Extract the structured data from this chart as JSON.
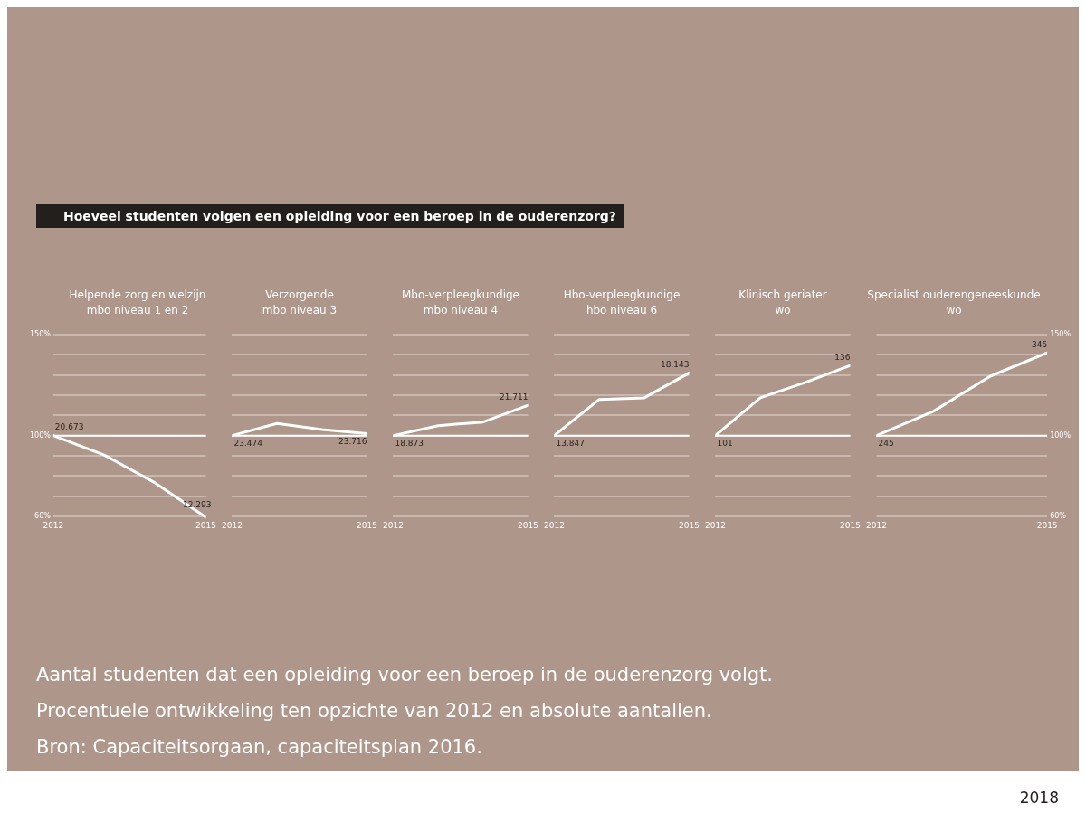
{
  "chart_data": [
    {
      "type": "other",
      "title": "Hoeveel studenten volgen een opleiding voor een beroep in de ouderenzorg?"
    },
    {
      "type": "line",
      "title": "Helpende zorg en welzijn\nmbo niveau 1 en 2",
      "categories": [
        "2012",
        null,
        null,
        "2015"
      ],
      "series": [
        {
          "color": "#ffffff",
          "values": [
            100,
            90.4,
            76.6,
            59.5
          ]
        }
      ],
      "ylim": [
        59,
        150
      ],
      "yticks": [
        {
          "value": 60,
          "label": "60%"
        },
        {
          "value": 70,
          "label": null
        },
        {
          "value": 80,
          "label": null
        },
        {
          "value": 90,
          "label": null
        },
        {
          "value": 100,
          "label": "100%"
        },
        {
          "value": 110,
          "label": null
        },
        {
          "value": 120,
          "label": null
        },
        {
          "value": 130,
          "label": null
        },
        {
          "value": 140,
          "label": null
        },
        {
          "value": 150,
          "label": "150%"
        }
      ],
      "grid": "y",
      "marker": "none",
      "ref_lines": [
        {
          "axis": "y",
          "value": 100,
          "color": "#ffffff"
        }
      ],
      "annotations": [
        {
          "text": "20.673",
          "x": "2012",
          "y": 100
        },
        {
          "text": "12.293",
          "x": "2015",
          "y": 59.5
        }
      ]
    },
    {
      "type": "line",
      "title": "Verzorgende\nmbo niveau 3",
      "categories": [
        "2012",
        null,
        null,
        "2015"
      ],
      "series": [
        {
          "color": "#ffffff",
          "values": [
            100,
            106,
            103,
            101
          ]
        }
      ],
      "ylim": [
        59,
        150
      ],
      "yticks": [
        60,
        70,
        80,
        90,
        100,
        110,
        120,
        130,
        140,
        150
      ],
      "tick_labels": "x",
      "grid": "y",
      "marker": "none",
      "ref_lines": [
        {
          "axis": "y",
          "value": 100,
          "color": "#ffffff"
        }
      ],
      "annotations": [
        {
          "text": "23.474",
          "x": "2012",
          "y": 100
        },
        {
          "text": "23.716",
          "x": "2015",
          "y": 101
        }
      ]
    },
    {
      "type": "line",
      "title": "Mbo-verpleegkundige\nmbo niveau 4",
      "categories": [
        "2012",
        null,
        null,
        "2015"
      ],
      "series": [
        {
          "color": "#ffffff",
          "values": [
            100,
            104.9,
            106.7,
            115
          ]
        }
      ],
      "ylim": [
        59,
        150
      ],
      "yticks": [
        60,
        70,
        80,
        90,
        100,
        110,
        120,
        130,
        140,
        150
      ],
      "tick_labels": "x",
      "grid": "y",
      "marker": "none",
      "ref_lines": [
        {
          "axis": "y",
          "value": 100,
          "color": "#ffffff"
        }
      ],
      "annotations": [
        {
          "text": "18.873",
          "x": "2012",
          "y": 100
        },
        {
          "text": "21.711",
          "x": "2015",
          "y": 115
        }
      ]
    },
    {
      "type": "line",
      "title": "Hbo-verpleegkundige\nhbo niveau 6",
      "categories": [
        "2012",
        null,
        null,
        "2015"
      ],
      "series": [
        {
          "color": "#ffffff",
          "values": [
            100,
            117.9,
            118.7,
            131
          ]
        }
      ],
      "ylim": [
        59,
        150
      ],
      "yticks": [
        60,
        70,
        80,
        90,
        100,
        110,
        120,
        130,
        140,
        150
      ],
      "tick_labels": "x",
      "grid": "y",
      "marker": "none",
      "ref_lines": [
        {
          "axis": "y",
          "value": 100,
          "color": "#ffffff"
        }
      ],
      "annotations": [
        {
          "text": "13.847",
          "x": "2012",
          "y": 100
        },
        {
          "text": "18.143",
          "x": "2015",
          "y": 131
        }
      ]
    },
    {
      "type": "line",
      "title": "Klinisch geriater\nwo",
      "categories": [
        "2012",
        null,
        null,
        "2015"
      ],
      "series": [
        {
          "color": "#ffffff",
          "values": [
            100,
            118.7,
            126.3,
            134.7
          ]
        }
      ],
      "ylim": [
        59,
        150
      ],
      "yticks": [
        60,
        70,
        80,
        90,
        100,
        110,
        120,
        130,
        140,
        150
      ],
      "tick_labels": "x",
      "grid": "y",
      "marker": "none",
      "ref_lines": [
        {
          "axis": "y",
          "value": 100,
          "color": "#ffffff"
        }
      ],
      "annotations": [
        {
          "text": "101",
          "x": "2012",
          "y": 100
        },
        {
          "text": "136",
          "x": "2015",
          "y": 134.7
        }
      ]
    },
    {
      "type": "line",
      "title": "Specialist ouderengeneeskunde\nwo",
      "categories": [
        "2012",
        null,
        null,
        "2015"
      ],
      "series": [
        {
          "color": "#ffffff",
          "values": [
            100,
            112,
            129.4,
            141
          ]
        }
      ],
      "ylim": [
        59,
        150
      ],
      "yticks": [
        {
          "value": 60,
          "label": "60%"
        },
        {
          "value": 70,
          "label": null
        },
        {
          "value": 80,
          "label": null
        },
        {
          "value": 90,
          "label": null
        },
        {
          "value": 100,
          "label": "100%"
        },
        {
          "value": 110,
          "label": null
        },
        {
          "value": 120,
          "label": null
        },
        {
          "value": 130,
          "label": null
        },
        {
          "value": 140,
          "label": null
        },
        {
          "value": 150,
          "label": "150%"
        }
      ],
      "grid": "y",
      "marker": "none",
      "ref_lines": [
        {
          "axis": "y",
          "value": 100,
          "color": "#ffffff"
        }
      ],
      "annotations": [
        {
          "text": "245",
          "x": "2012",
          "y": 100
        },
        {
          "text": "345",
          "x": "2015",
          "y": 141
        }
      ]
    },
    {
      "type": "other",
      "annotations": [
        "Aantal studenten dat een opleiding voor een beroep in de ouderenzorg volgt.",
        "Procentuele ontwikkeling ten opzichte van 2012 en absolute aantallen.",
        "Bron: Capaciteitsorgaan, capaciteitsplan 2016.",
        "2018"
      ]
    }
  ]
}
